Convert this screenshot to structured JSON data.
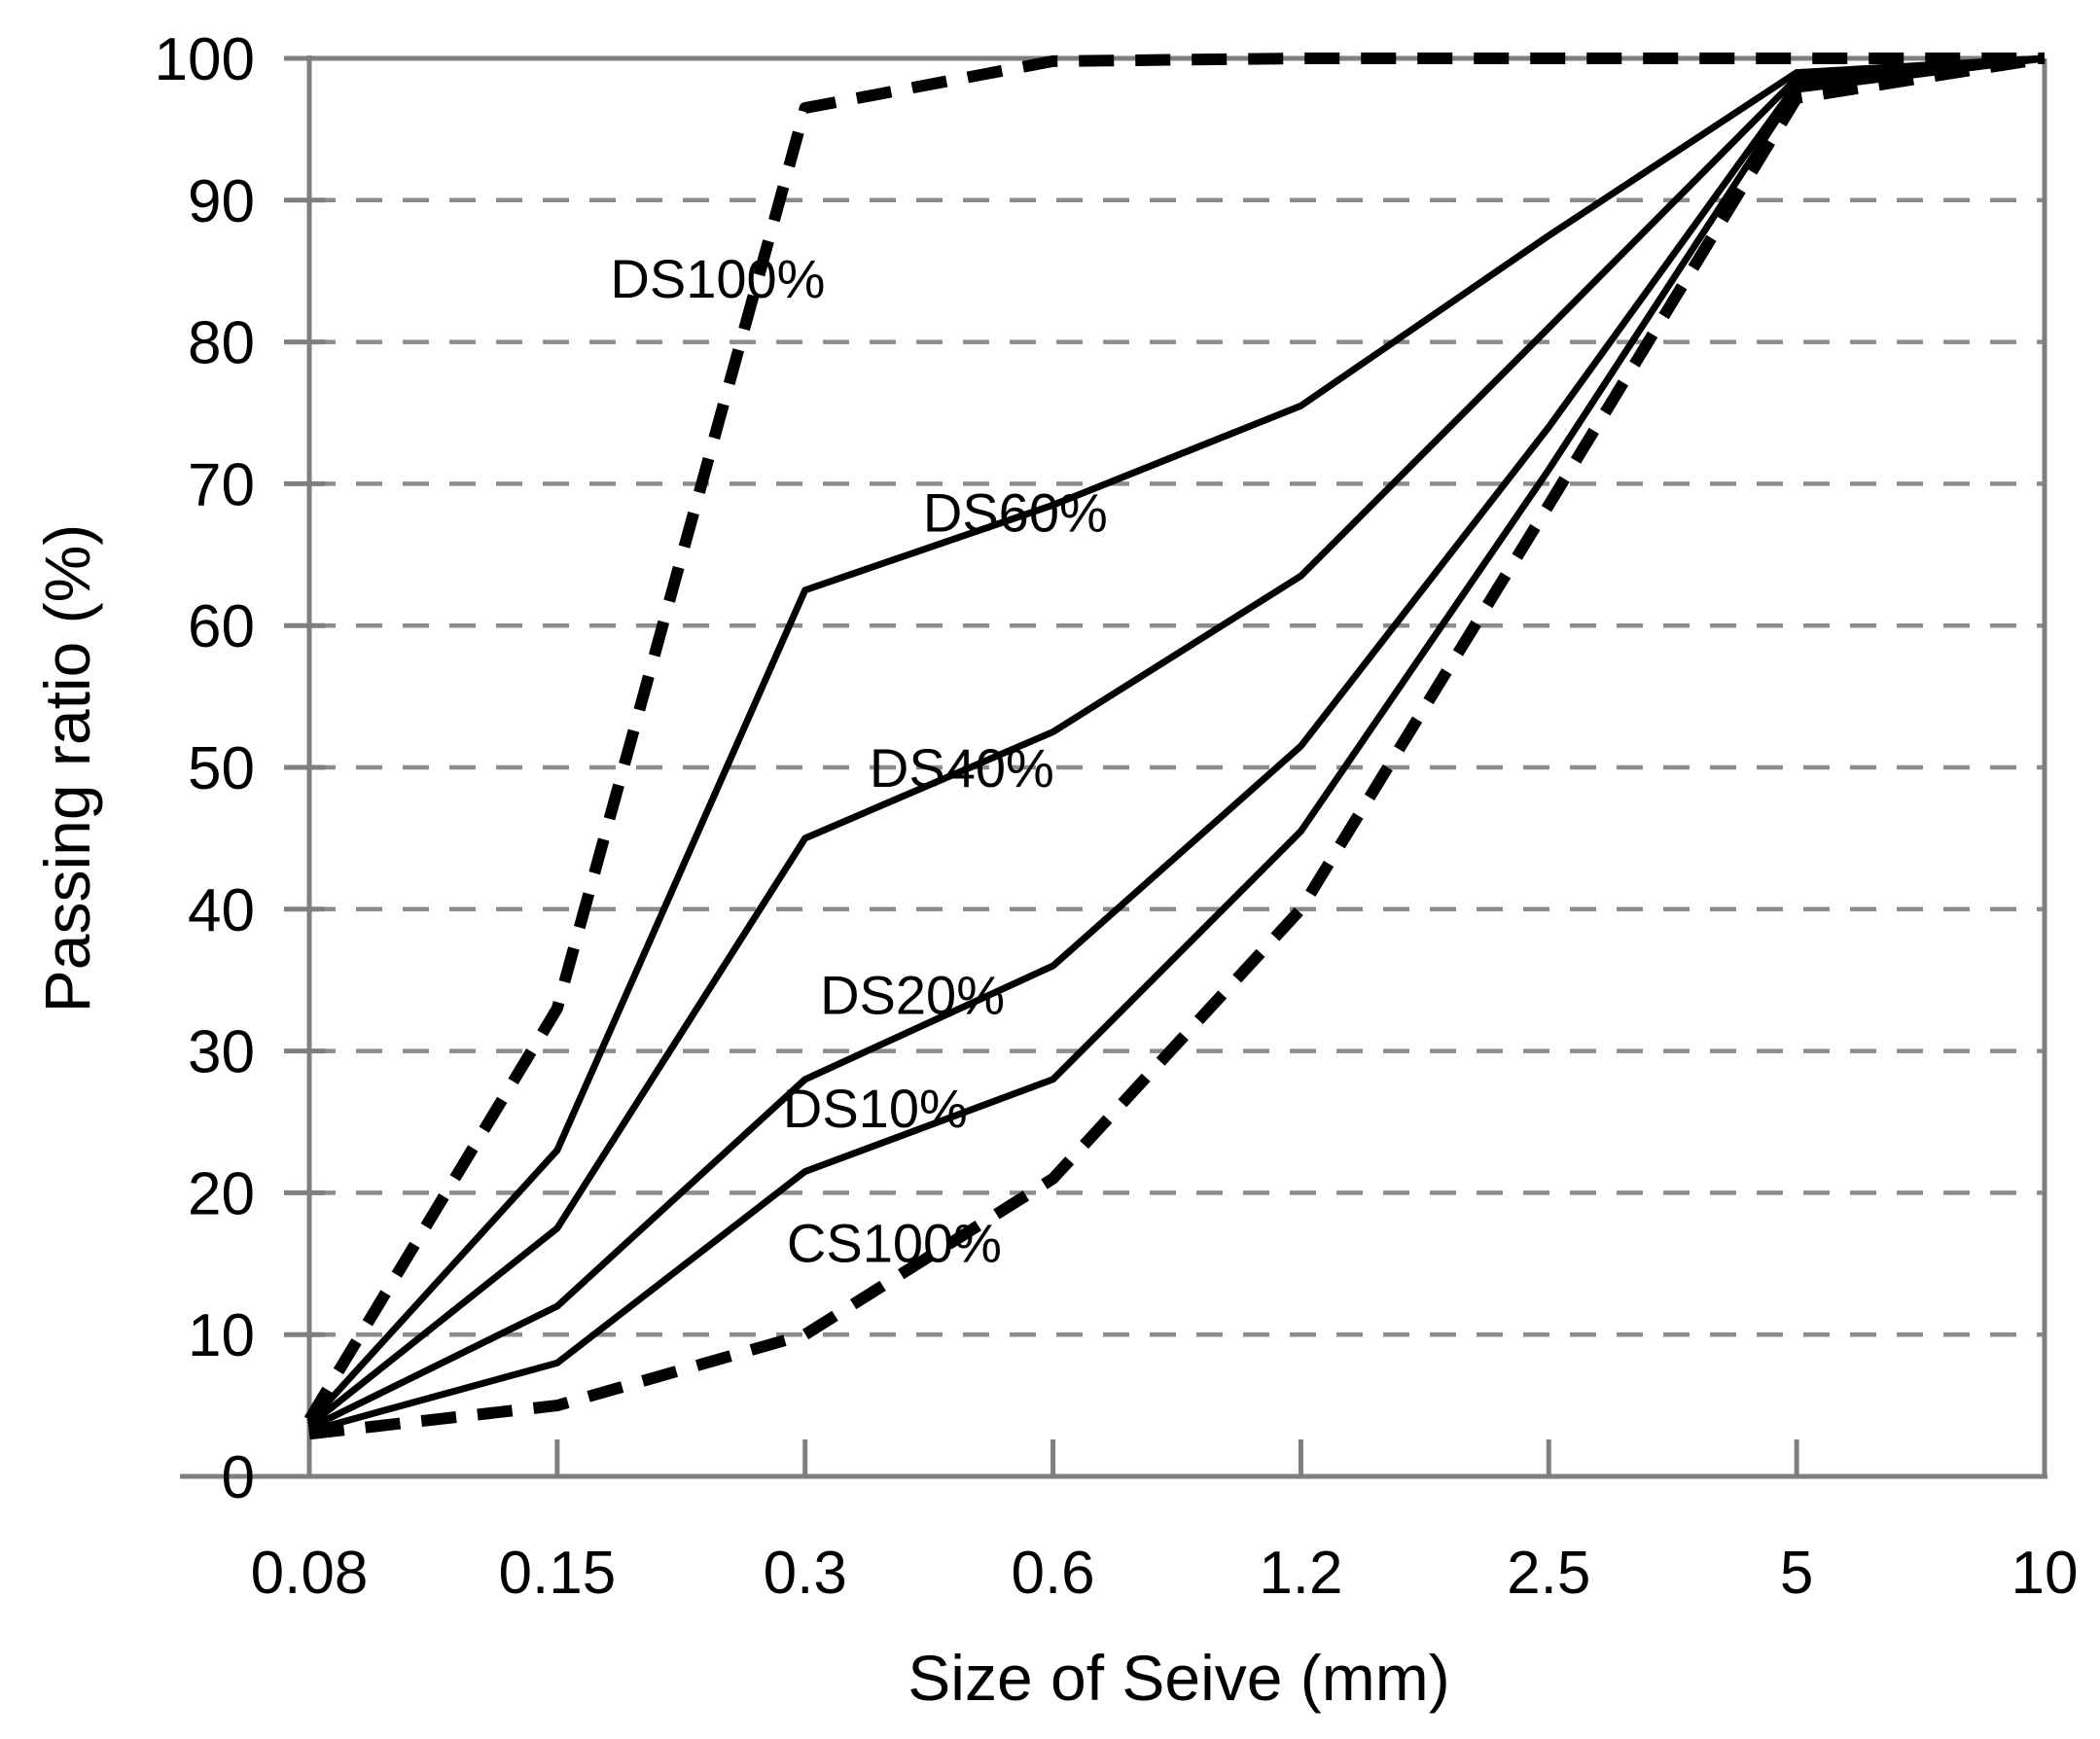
{
  "chart_data": {
    "type": "line",
    "title": "",
    "xlabel": "Size of Seive (mm)",
    "ylabel": "Passing ratio (%)",
    "x_scale": "log-categorical",
    "x_ticks": [
      0.08,
      0.15,
      0.3,
      0.6,
      1.2,
      2.5,
      5,
      10
    ],
    "x_tick_labels": [
      "0.08",
      "0.15",
      "0.3",
      "0.6",
      "1.2",
      "2.5",
      "5",
      "10"
    ],
    "y_ticks": [
      0,
      10,
      20,
      30,
      40,
      50,
      60,
      70,
      80,
      90,
      100
    ],
    "ylim": [
      0,
      100
    ],
    "grid": "horizontal-dashed",
    "legend_position": "inline-annotations",
    "series": [
      {
        "name": "DS100%",
        "style": "dashed",
        "values": [
          4.0,
          33.0,
          96.5,
          99.8,
          100,
          100,
          100,
          100
        ]
      },
      {
        "name": "DS60%",
        "style": "solid",
        "values": [
          3.8,
          23.0,
          62.5,
          68.5,
          75.5,
          87.5,
          99.0,
          100
        ]
      },
      {
        "name": "DS40%",
        "style": "solid",
        "values": [
          3.6,
          17.5,
          45.0,
          52.5,
          63.5,
          81.0,
          98.6,
          100
        ]
      },
      {
        "name": "DS20%",
        "style": "solid",
        "values": [
          3.4,
          12.0,
          28.0,
          36.0,
          51.5,
          74.0,
          98.2,
          100
        ]
      },
      {
        "name": "DS10%",
        "style": "solid",
        "values": [
          3.2,
          8.0,
          21.5,
          28.0,
          45.5,
          71.0,
          97.8,
          100
        ]
      },
      {
        "name": "CS100%",
        "style": "dashed",
        "values": [
          3.0,
          5.0,
          10.0,
          21.0,
          40.0,
          68.5,
          97.2,
          100
        ]
      }
    ],
    "annotations": [
      {
        "text": "DS100%",
        "x_mm": 0.235,
        "y_pct": 84.5
      },
      {
        "text": "DS60%",
        "x_mm": 0.54,
        "y_pct": 68.0
      },
      {
        "text": "DS40%",
        "x_mm": 0.465,
        "y_pct": 50.0
      },
      {
        "text": "DS20%",
        "x_mm": 0.405,
        "y_pct": 34.0
      },
      {
        "text": "DS10%",
        "x_mm": 0.365,
        "y_pct": 26.0
      },
      {
        "text": "CS100%",
        "x_mm": 0.385,
        "y_pct": 16.5
      }
    ],
    "colors": {
      "line": "#000000",
      "axis": "#7f7f7f",
      "grid": "#8c8c8c",
      "background": "#ffffff",
      "text": "#000000"
    }
  }
}
